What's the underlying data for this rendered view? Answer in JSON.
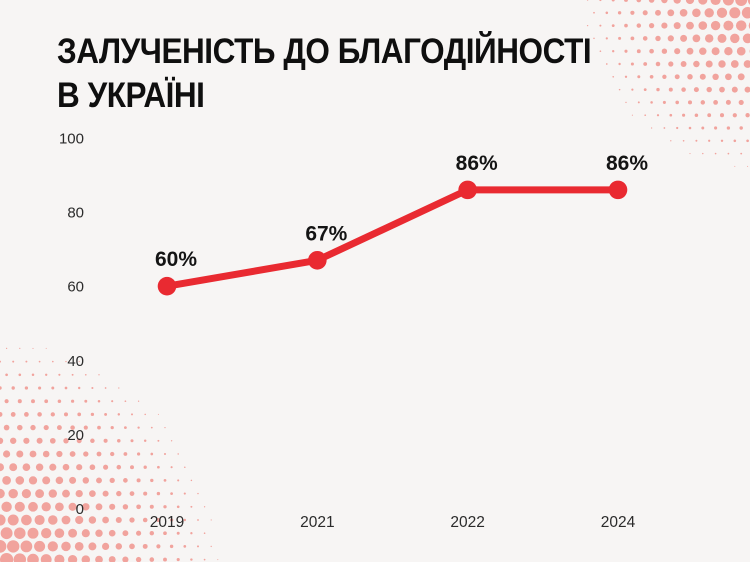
{
  "title": {
    "line1": "ЗАЛУЧЕНІСТЬ ДО БЛАГОДІЙНОСТІ",
    "line2": "В УКРАЇНІ"
  },
  "colors": {
    "background": "#f7f5f4",
    "line": "#e92a31",
    "halftone": "#f1a39d",
    "title_text": "#0f0f0f",
    "tick_text": "#2b2b2b",
    "label_text": "#141414"
  },
  "chart_data": {
    "type": "line",
    "title": "ЗАЛУЧЕНІСТЬ ДО БЛАГОДІЙНОСТІ В УКРАЇНІ",
    "x": [
      "2019",
      "2021",
      "2022",
      "2024"
    ],
    "series": [
      {
        "name": "charity-engagement",
        "values": [
          60,
          67,
          86,
          86
        ]
      }
    ],
    "point_labels": [
      "60%",
      "67%",
      "86%",
      "86%"
    ],
    "y_ticks": [
      "100",
      "80",
      "60",
      "40",
      "20",
      "0"
    ],
    "ylim": [
      0,
      100
    ],
    "xlabel": "",
    "ylabel": "",
    "grid": false,
    "legend": false
  }
}
